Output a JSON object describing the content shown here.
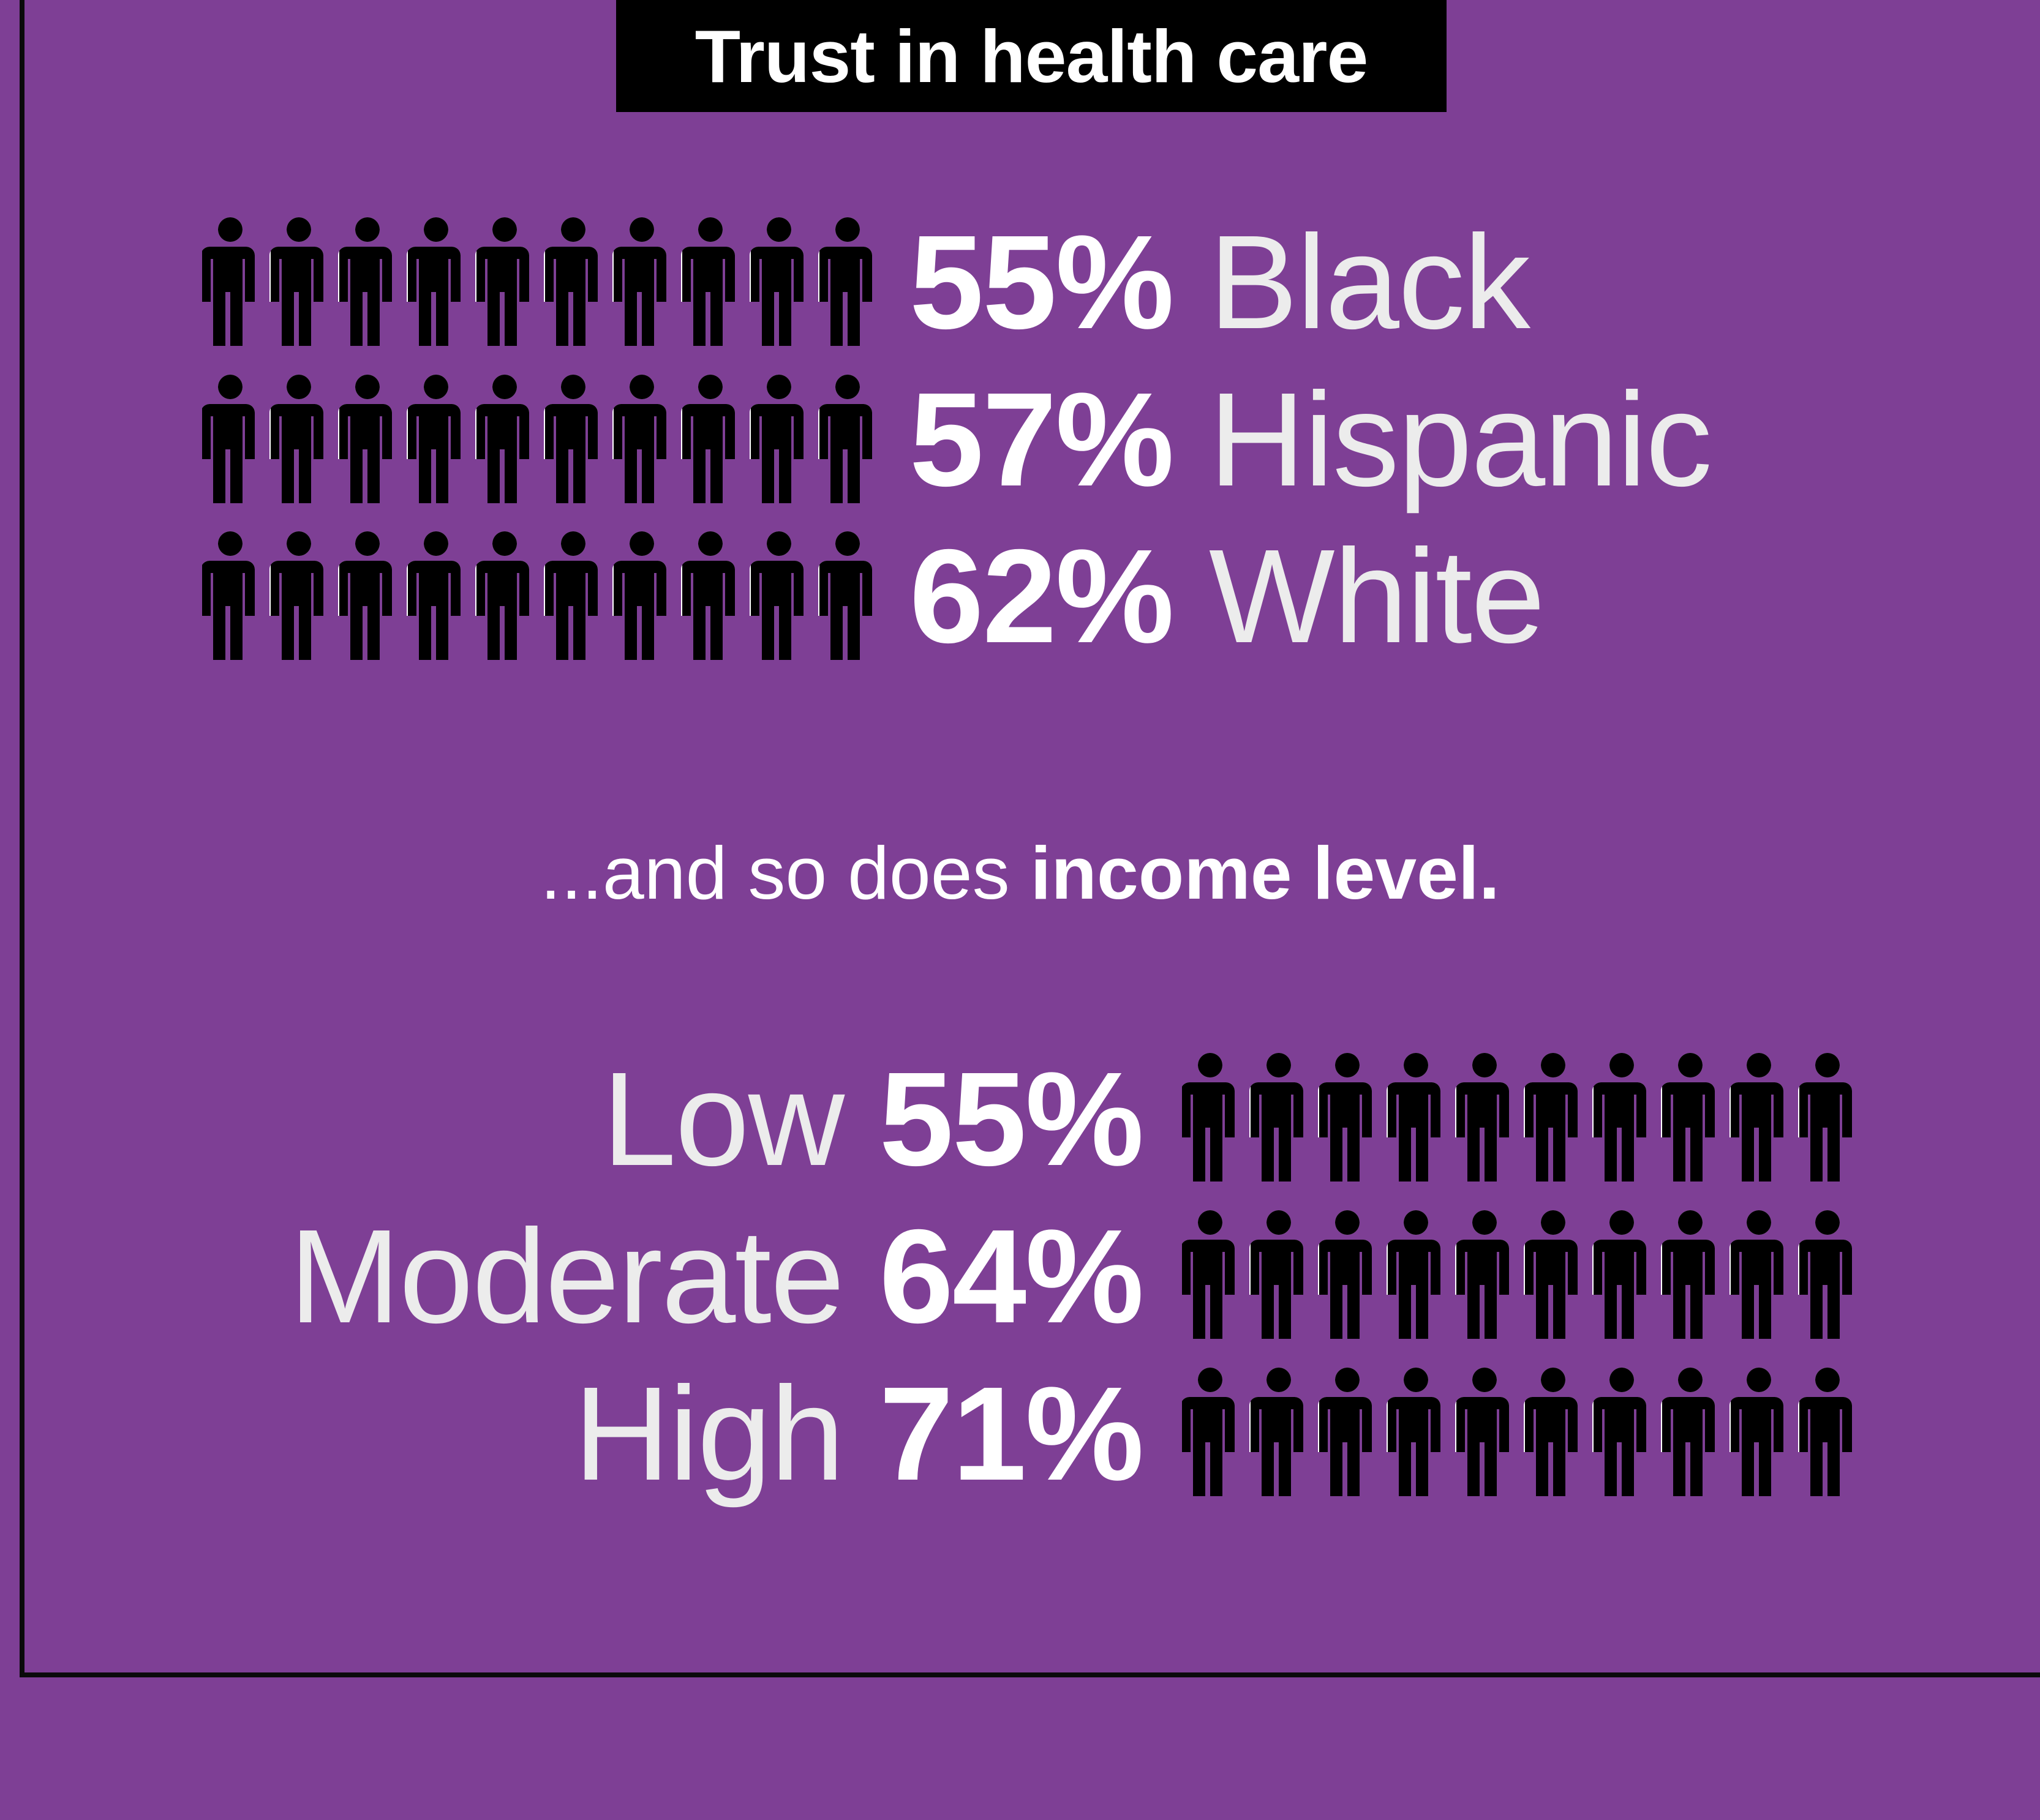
{
  "title": "Trust in health care",
  "middle_text": {
    "regular": "...and so does",
    "bold": "income level."
  },
  "colors": {
    "background": "#7e3f95",
    "trust": "#000000",
    "not_trust": "#ffffff",
    "text": "#ececec"
  },
  "icon": "person-icon",
  "chart_data": [
    {
      "type": "pictograph",
      "icons_per_row": 10,
      "filled_side": "left",
      "rows": [
        {
          "value": 55,
          "value_label": "55%",
          "category": "Black"
        },
        {
          "value": 57,
          "value_label": "57%",
          "category": "Hispanic"
        },
        {
          "value": 62,
          "value_label": "62%",
          "category": "White"
        }
      ]
    },
    {
      "type": "pictograph",
      "icons_per_row": 10,
      "filled_side": "left",
      "rows": [
        {
          "value": 55,
          "value_label": "55%",
          "category": "Low"
        },
        {
          "value": 64,
          "value_label": "64%",
          "category": "Moderate"
        },
        {
          "value": 71,
          "value_label": "71%",
          "category": "High"
        }
      ]
    }
  ]
}
